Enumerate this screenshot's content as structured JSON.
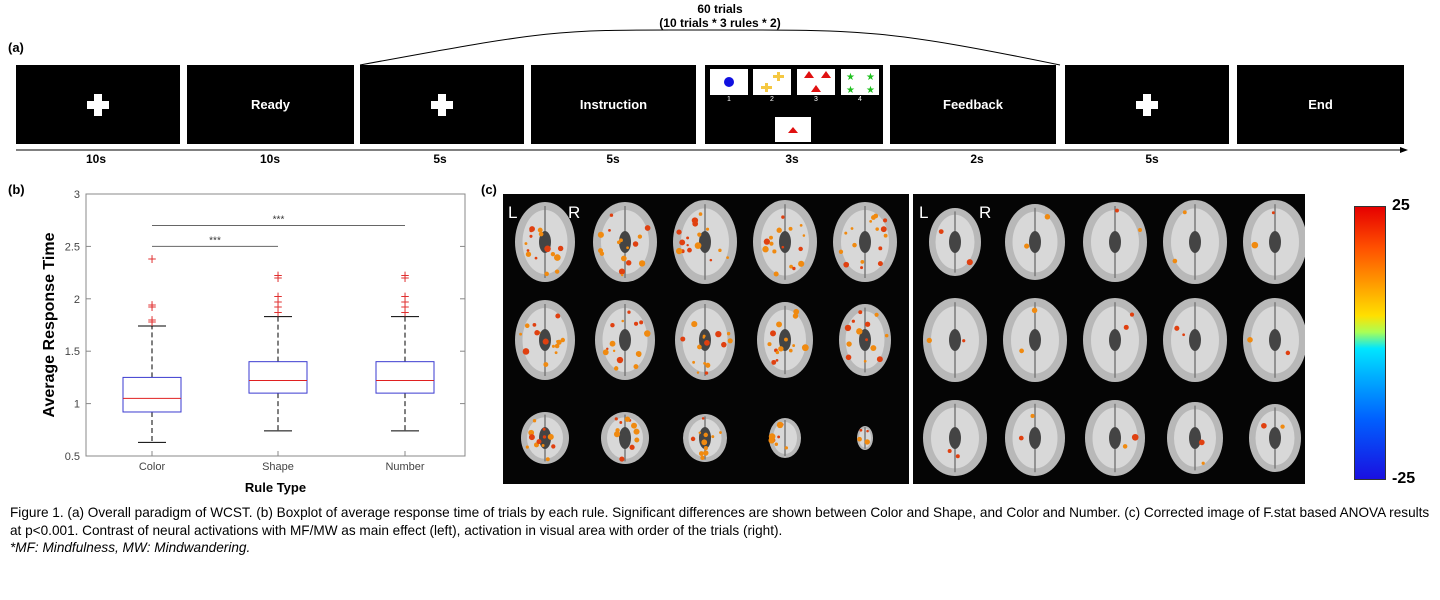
{
  "labels": {
    "a": "(a)",
    "b": "(b)",
    "c": "(c)"
  },
  "paradigm": {
    "trials_line1": "60 trials",
    "trials_line2": "(10 trials * 3 rules * 2)",
    "panels": [
      {
        "type": "cross",
        "text": ""
      },
      {
        "type": "text",
        "text": "Ready"
      },
      {
        "type": "cross",
        "text": ""
      },
      {
        "type": "text",
        "text": "Instruction"
      },
      {
        "type": "cards",
        "text": ""
      },
      {
        "type": "text",
        "text": "Feedback"
      },
      {
        "type": "cross",
        "text": ""
      },
      {
        "type": "text",
        "text": "End"
      }
    ],
    "durations": [
      "10s",
      "10s",
      "5s",
      "5s",
      "3s",
      "2s",
      "5s"
    ],
    "card_numbers": [
      "1",
      "2",
      "3",
      "4"
    ]
  },
  "chart_data": {
    "type": "box",
    "xlabel": "Rule Type",
    "ylabel": "Average Response Time",
    "ylim": [
      0.5,
      3
    ],
    "yticks": [
      "0.5",
      "1",
      "1.5",
      "2",
      "2.5",
      "3"
    ],
    "categories": [
      "Color",
      "Shape",
      "Number"
    ],
    "boxes": [
      {
        "category": "Color",
        "whisker_low": 0.63,
        "q1": 0.92,
        "median": 1.05,
        "q3": 1.25,
        "whisker_high": 1.74,
        "outliers": [
          1.78,
          1.8,
          1.92,
          1.94,
          2.38
        ]
      },
      {
        "category": "Shape",
        "whisker_low": 0.74,
        "q1": 1.1,
        "median": 1.22,
        "q3": 1.4,
        "whisker_high": 1.83,
        "outliers": [
          1.87,
          1.92,
          1.97,
          2.02,
          2.2,
          2.22
        ]
      },
      {
        "category": "Number",
        "whisker_low": 0.74,
        "q1": 1.1,
        "median": 1.22,
        "q3": 1.4,
        "whisker_high": 1.83,
        "outliers": [
          1.87,
          1.92,
          1.97,
          2.02,
          2.2,
          2.22
        ]
      }
    ],
    "significance": [
      {
        "from": "Color",
        "to": "Shape",
        "y": 2.5,
        "label": "***"
      },
      {
        "from": "Color",
        "to": "Number",
        "y": 2.7,
        "label": "***"
      }
    ],
    "colors": {
      "box": "#3a3ad0",
      "median": "#e02020",
      "outlier": "#e03030",
      "sig": "#666666"
    }
  },
  "brain": {
    "left_labels": {
      "l": "L",
      "r": "R"
    },
    "right_labels": {
      "l": "L",
      "r": "R"
    },
    "colorbar_max": "25",
    "colorbar_min": "-25"
  },
  "caption": {
    "text": "Figure 1. (a) Overall paradigm of WCST. (b) Boxplot of average response time of trials by each rule. Significant differences are shown between Color and Shape, and Color and Number. (c) Corrected image of F.stat based ANOVA results at p<0.001. Contrast of neural activations with MF/MW as main effect (left), activation in visual area with order of the trials (right).",
    "note": "*MF: Mindfulness, MW: Mindwandering."
  }
}
